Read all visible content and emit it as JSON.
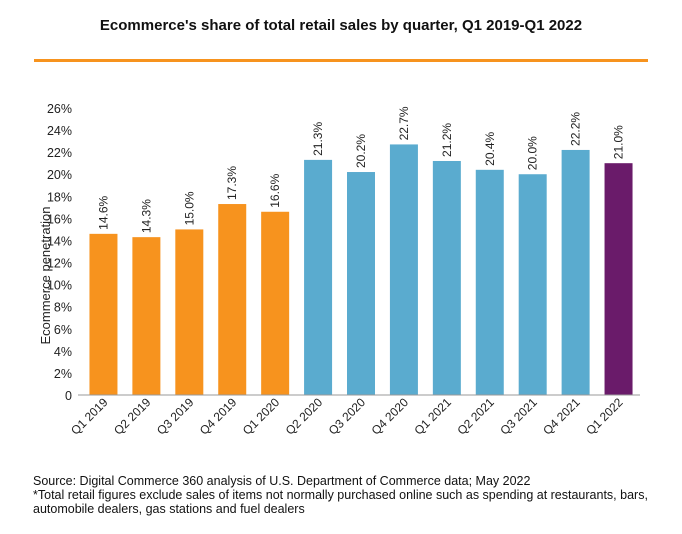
{
  "chart_data": {
    "type": "bar",
    "title": "Ecommerce's share of total retail sales by quarter, Q1 2019-Q1 2022",
    "xlabel": "",
    "ylabel": "Ecommerce penetration",
    "ylim": [
      0,
      26
    ],
    "yticks": [
      "0",
      "2%",
      "4%",
      "6%",
      "8%",
      "10%",
      "12%",
      "14%",
      "16%",
      "18%",
      "20%",
      "22%",
      "24%",
      "26%"
    ],
    "grid": false,
    "categories": [
      "Q1 2019",
      "Q2 2019",
      "Q3 2019",
      "Q4 2019",
      "Q1 2020",
      "Q2 2020",
      "Q3 2020",
      "Q4 2020",
      "Q1 2021",
      "Q2 2021",
      "Q3 2021",
      "Q4 2021",
      "Q1 2022"
    ],
    "values": [
      14.6,
      14.3,
      15.0,
      17.3,
      16.6,
      21.3,
      20.2,
      22.7,
      21.2,
      20.4,
      20.0,
      22.2,
      21.0
    ],
    "data_labels": [
      "14.6%",
      "14.3%",
      "15.0%",
      "17.3%",
      "16.6%",
      "21.3%",
      "20.2%",
      "22.7%",
      "21.2%",
      "20.4%",
      "20.0%",
      "22.2%",
      "21.0%"
    ],
    "bar_colors": [
      "#f7931e",
      "#f7931e",
      "#f7931e",
      "#f7931e",
      "#f7931e",
      "#5aabcf",
      "#5aabcf",
      "#5aabcf",
      "#5aabcf",
      "#5aabcf",
      "#5aabcf",
      "#5aabcf",
      "#6a1b6a"
    ]
  },
  "colors": {
    "accent_rule": "#f7931e",
    "axis": "#999999"
  },
  "footer": {
    "source": "Source: Digital Commerce 360 analysis of U.S. Department of Commerce data; May 2022",
    "note": "*Total retail figures exclude sales of items not normally purchased online such as spending at restaurants, bars, automobile dealers, gas stations and fuel dealers"
  }
}
